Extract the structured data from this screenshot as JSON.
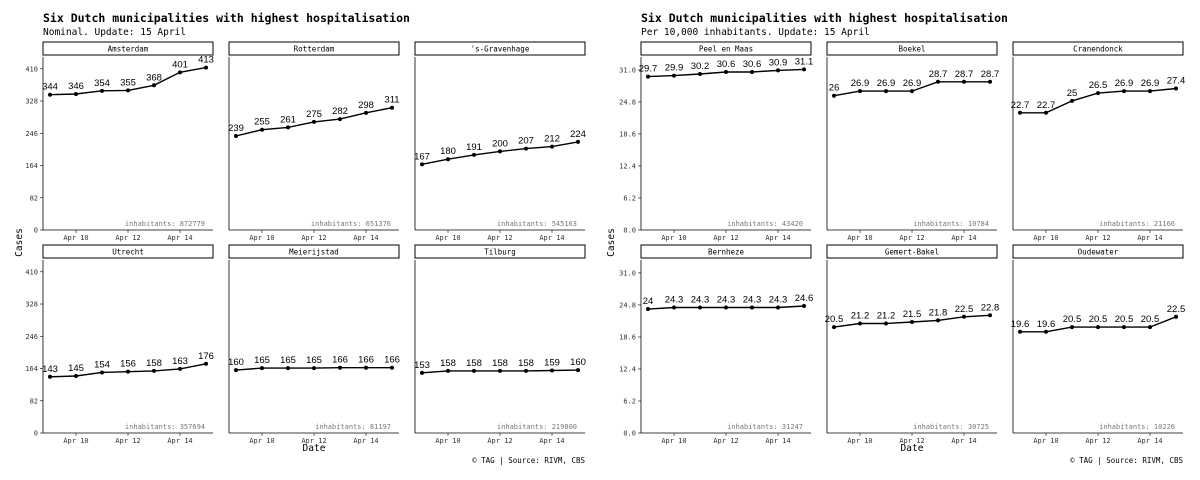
{
  "chart_data": [
    {
      "type": "line",
      "title": "Six Dutch municipalities with highest hospitalisation",
      "subtitle": "Nominal. Update: 15 April",
      "xlabel": "Date",
      "ylabel": "Cases",
      "caption": "© TAG | Source: RIVM, CBS",
      "x": [
        "2020-04-09",
        "2020-04-10",
        "2020-04-11",
        "2020-04-12",
        "2020-04-13",
        "2020-04-14",
        "2020-04-15"
      ],
      "x_ticks": [
        "Apr 10",
        "Apr 12",
        "Apr 14"
      ],
      "y_ticks": [
        "0",
        "82",
        "164",
        "246",
        "328",
        "410"
      ],
      "ylim": [
        0,
        440
      ],
      "panels": [
        {
          "name": "Amsterdam",
          "inhabitants": "inhabitants: 872779",
          "values": [
            344,
            346,
            354,
            355,
            368,
            401,
            413
          ]
        },
        {
          "name": "Rotterdam",
          "inhabitants": "inhabitants: 651376",
          "values": [
            239,
            255,
            261,
            275,
            282,
            298,
            311
          ]
        },
        {
          "name": "'s-Gravenhage",
          "inhabitants": "inhabitants: 545163",
          "values": [
            167,
            180,
            191,
            200,
            207,
            212,
            224
          ]
        },
        {
          "name": "Utrecht",
          "inhabitants": "inhabitants: 357694",
          "values": [
            143,
            145,
            154,
            156,
            158,
            163,
            176
          ]
        },
        {
          "name": "Meierijstad",
          "inhabitants": "inhabitants: 81197",
          "values": [
            160,
            165,
            165,
            165,
            166,
            166,
            166
          ]
        },
        {
          "name": "Tilburg",
          "inhabitants": "inhabitants: 219800",
          "values": [
            153,
            158,
            158,
            158,
            158,
            159,
            160
          ]
        }
      ]
    },
    {
      "type": "line",
      "title": "Six Dutch municipalities with highest hospitalisation",
      "subtitle": "Per 10,000 inhabitants. Update: 15 April",
      "xlabel": "Date",
      "ylabel": "Cases",
      "caption": "© TAG | Source: RIVM, CBS",
      "x": [
        "2020-04-09",
        "2020-04-10",
        "2020-04-11",
        "2020-04-12",
        "2020-04-13",
        "2020-04-14",
        "2020-04-15"
      ],
      "x_ticks": [
        "Apr 10",
        "Apr 12",
        "Apr 14"
      ],
      "y_ticks": [
        "0.0",
        "6.2",
        "12.4",
        "18.6",
        "24.8",
        "31.0"
      ],
      "ylim": [
        0,
        33.5
      ],
      "panels": [
        {
          "name": "Peel en Maas",
          "inhabitants": "inhabitants: 43420",
          "values": [
            29.7,
            29.9,
            30.2,
            30.6,
            30.6,
            30.9,
            31.1
          ]
        },
        {
          "name": "Boekel",
          "inhabitants": "inhabitants: 10784",
          "values": [
            26,
            26.9,
            26.9,
            26.9,
            28.7,
            28.7,
            28.7
          ]
        },
        {
          "name": "Cranendonck",
          "inhabitants": "inhabitants: 21166",
          "values": [
            22.7,
            22.7,
            25,
            26.5,
            26.9,
            26.9,
            27.4
          ]
        },
        {
          "name": "Bernheze",
          "inhabitants": "inhabitants: 31247",
          "values": [
            24,
            24.3,
            24.3,
            24.3,
            24.3,
            24.3,
            24.6
          ]
        },
        {
          "name": "Gemert-Bakel",
          "inhabitants": "inhabitants: 30725",
          "values": [
            20.5,
            21.2,
            21.2,
            21.5,
            21.8,
            22.5,
            22.8
          ]
        },
        {
          "name": "Oudewater",
          "inhabitants": "inhabitants: 10226",
          "values": [
            19.6,
            19.6,
            20.5,
            20.5,
            20.5,
            20.5,
            22.5
          ]
        }
      ]
    }
  ]
}
